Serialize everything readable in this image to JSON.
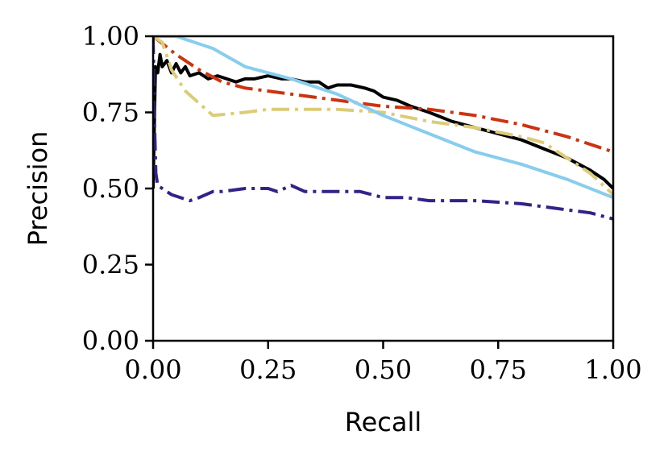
{
  "chart_data": {
    "type": "line",
    "title": "",
    "xlabel": "Recall",
    "ylabel": "Precision",
    "xlim": [
      0.0,
      1.0
    ],
    "ylim": [
      0.0,
      1.0
    ],
    "xticks": [
      "0.00",
      "0.25",
      "0.50",
      "0.75",
      "1.00"
    ],
    "yticks": [
      "0.00",
      "0.25",
      "0.50",
      "0.75",
      "1.00"
    ],
    "grid": false,
    "legend": "none",
    "series": [
      {
        "color": "#000000",
        "style": "solid",
        "x": [
          0.0,
          0.005,
          0.01,
          0.015,
          0.02,
          0.03,
          0.04,
          0.05,
          0.06,
          0.07,
          0.08,
          0.1,
          0.12,
          0.14,
          0.16,
          0.18,
          0.2,
          0.22,
          0.25,
          0.28,
          0.3,
          0.33,
          0.36,
          0.38,
          0.4,
          0.43,
          0.46,
          0.48,
          0.5,
          0.53,
          0.56,
          0.6,
          0.65,
          0.7,
          0.75,
          0.8,
          0.85,
          0.9,
          0.95,
          0.98,
          1.0
        ],
        "y": [
          0.5,
          0.9,
          0.88,
          0.94,
          0.9,
          0.92,
          0.88,
          0.91,
          0.88,
          0.9,
          0.87,
          0.88,
          0.86,
          0.87,
          0.86,
          0.85,
          0.86,
          0.86,
          0.87,
          0.86,
          0.86,
          0.85,
          0.85,
          0.83,
          0.84,
          0.84,
          0.83,
          0.82,
          0.8,
          0.79,
          0.77,
          0.75,
          0.72,
          0.7,
          0.68,
          0.66,
          0.63,
          0.6,
          0.56,
          0.53,
          0.5
        ]
      },
      {
        "color": "#CC3311",
        "style": "dashdot",
        "x": [
          0.0,
          0.05,
          0.1,
          0.15,
          0.2,
          0.3,
          0.4,
          0.5,
          0.6,
          0.7,
          0.8,
          0.9,
          1.0
        ],
        "y": [
          1.0,
          0.94,
          0.89,
          0.85,
          0.83,
          0.81,
          0.79,
          0.77,
          0.76,
          0.74,
          0.71,
          0.67,
          0.62
        ]
      },
      {
        "color": "#DDCC77",
        "style": "dashdot",
        "x": [
          0.0,
          0.02,
          0.04,
          0.07,
          0.1,
          0.13,
          0.2,
          0.25,
          0.3,
          0.4,
          0.5,
          0.6,
          0.7,
          0.8,
          0.85,
          0.9,
          0.95,
          1.0
        ],
        "y": [
          1.0,
          0.98,
          0.89,
          0.82,
          0.78,
          0.74,
          0.75,
          0.76,
          0.76,
          0.76,
          0.75,
          0.72,
          0.7,
          0.67,
          0.65,
          0.6,
          0.55,
          0.48
        ]
      },
      {
        "color": "#88CCEE",
        "style": "solid",
        "x": [
          0.0,
          0.05,
          0.13,
          0.2,
          0.3,
          0.4,
          0.5,
          0.6,
          0.7,
          0.8,
          0.9,
          1.0
        ],
        "y": [
          1.0,
          1.0,
          0.96,
          0.9,
          0.86,
          0.81,
          0.74,
          0.68,
          0.62,
          0.58,
          0.53,
          0.47
        ]
      },
      {
        "color": "#332288",
        "style": "dashdot",
        "x": [
          0.0,
          0.003,
          0.006,
          0.01,
          0.02,
          0.04,
          0.08,
          0.1,
          0.13,
          0.15,
          0.2,
          0.25,
          0.27,
          0.3,
          0.33,
          0.35,
          0.4,
          0.45,
          0.5,
          0.55,
          0.6,
          0.7,
          0.8,
          0.9,
          0.95,
          1.0
        ],
        "y": [
          1.0,
          0.72,
          0.55,
          0.51,
          0.5,
          0.48,
          0.46,
          0.47,
          0.49,
          0.49,
          0.5,
          0.5,
          0.49,
          0.51,
          0.49,
          0.49,
          0.49,
          0.49,
          0.47,
          0.47,
          0.46,
          0.46,
          0.45,
          0.43,
          0.42,
          0.4
        ]
      }
    ]
  }
}
